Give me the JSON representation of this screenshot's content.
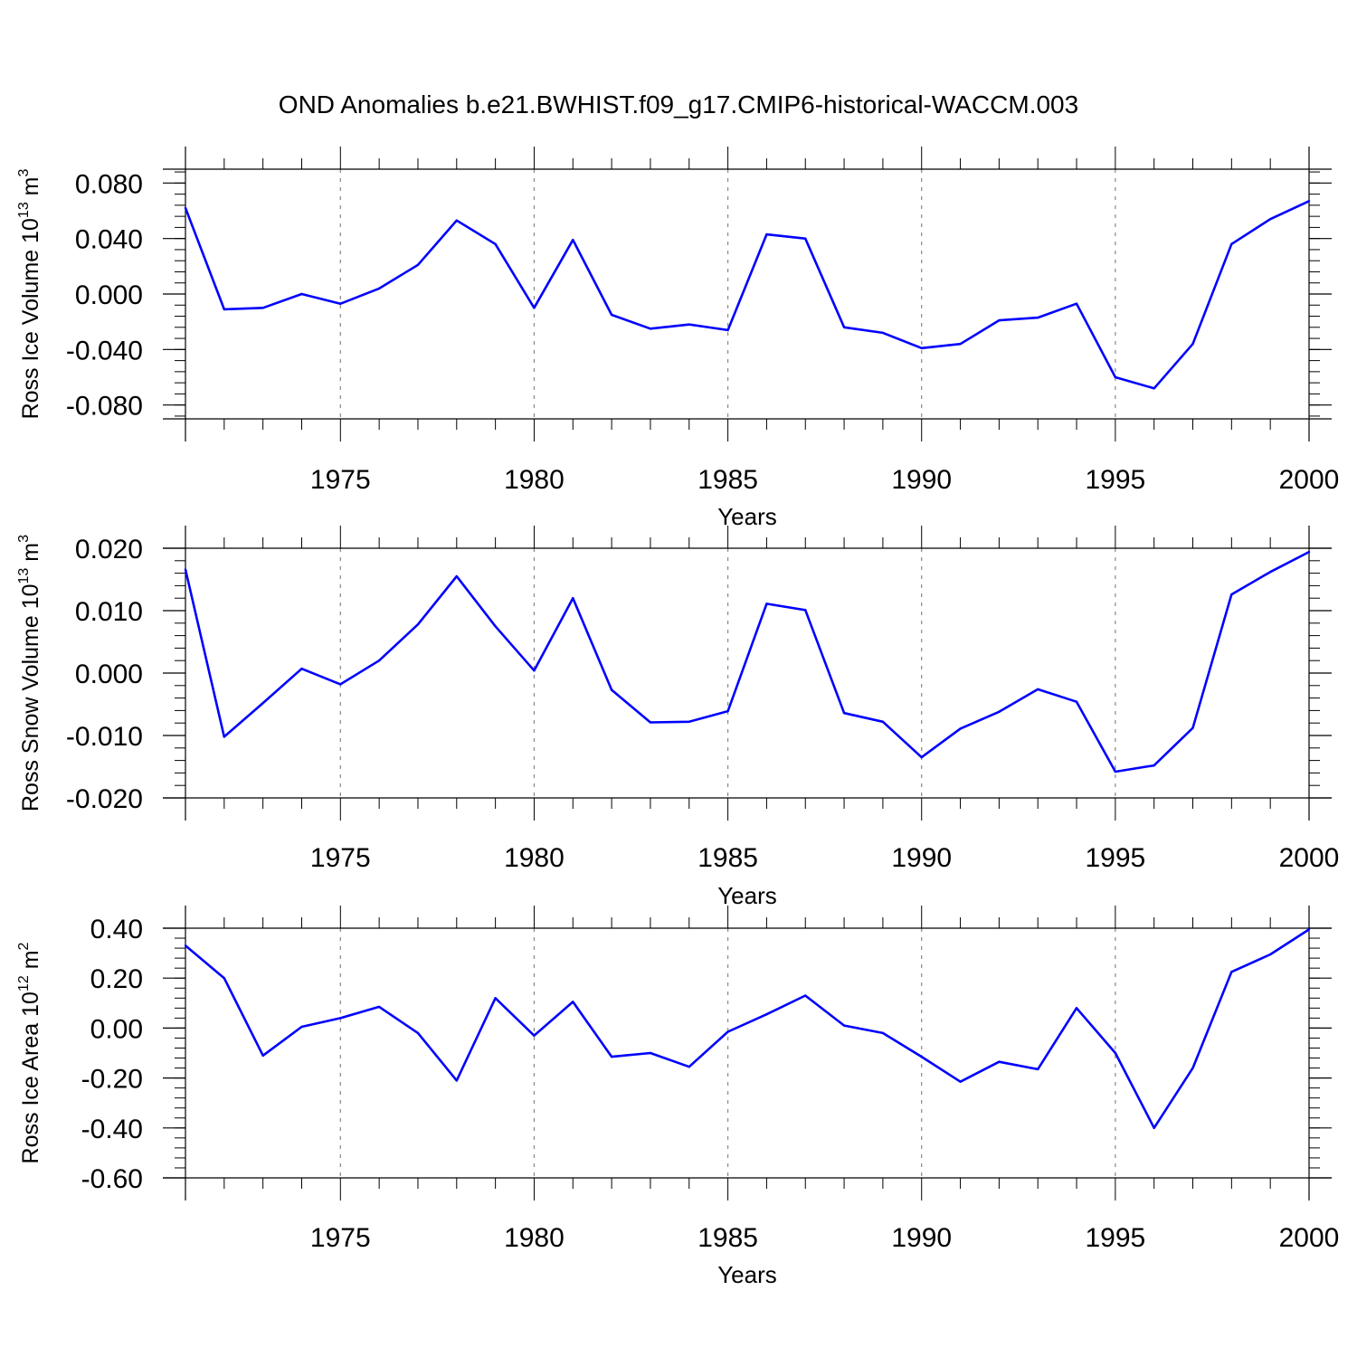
{
  "title": "OND Anomalies b.e21.BWHIST.f09_g17.CMIP6-historical-WACCM.003",
  "colors": {
    "line": "#0000ff",
    "axis": "#000000",
    "grid": "#888888"
  },
  "chart_data": [
    {
      "type": "line",
      "ylabel": {
        "main": "Ross Ice Volume 10",
        "exp": "13",
        "unit": " m",
        "unit_exp": "3"
      },
      "xlabel": "Years",
      "xlim": [
        1971,
        2000
      ],
      "ylim": [
        -0.09,
        0.09
      ],
      "xticks": [
        1975,
        1980,
        1985,
        1990,
        1995,
        2000
      ],
      "xtick_labels": [
        "1975",
        "1980",
        "1985",
        "1990",
        "1995",
        "2000"
      ],
      "yticks": [
        0.08,
        0.04,
        0.0,
        -0.04,
        -0.08
      ],
      "ytick_labels": [
        "0.080",
        "0.040",
        "0.000",
        "-0.040",
        "-0.080"
      ],
      "grid_x": true,
      "x": [
        1971,
        1972,
        1973,
        1974,
        1975,
        1976,
        1977,
        1978,
        1979,
        1980,
        1981,
        1982,
        1983,
        1984,
        1985,
        1986,
        1987,
        1988,
        1989,
        1990,
        1991,
        1992,
        1993,
        1994,
        1995,
        1996,
        1997,
        1998,
        1999,
        2000
      ],
      "series": [
        {
          "values": [
            0.062,
            -0.011,
            -0.01,
            0.0,
            -0.007,
            0.004,
            0.021,
            0.053,
            0.036,
            -0.01,
            0.039,
            -0.015,
            -0.025,
            -0.022,
            -0.026,
            0.043,
            0.04,
            -0.024,
            -0.028,
            -0.039,
            -0.036,
            -0.019,
            -0.017,
            -0.007,
            -0.06,
            -0.068,
            -0.036,
            0.036,
            0.054,
            0.067
          ]
        }
      ]
    },
    {
      "type": "line",
      "ylabel": {
        "main": "Ross Snow Volume 10",
        "exp": "13",
        "unit": " m",
        "unit_exp": "3"
      },
      "xlabel": "Years",
      "xlim": [
        1971,
        2000
      ],
      "ylim": [
        -0.02,
        0.02
      ],
      "xticks": [
        1975,
        1980,
        1985,
        1990,
        1995,
        2000
      ],
      "xtick_labels": [
        "1975",
        "1980",
        "1985",
        "1990",
        "1995",
        "2000"
      ],
      "yticks": [
        0.02,
        0.01,
        0.0,
        -0.01,
        -0.02
      ],
      "ytick_labels": [
        "0.020",
        "0.010",
        "0.000",
        "-0.010",
        "-0.020"
      ],
      "grid_x": true,
      "x": [
        1971,
        1972,
        1973,
        1974,
        1975,
        1976,
        1977,
        1978,
        1979,
        1980,
        1981,
        1982,
        1983,
        1984,
        1985,
        1986,
        1987,
        1988,
        1989,
        1990,
        1991,
        1992,
        1993,
        1994,
        1995,
        1996,
        1997,
        1998,
        1999,
        2000
      ],
      "series": [
        {
          "values": [
            0.0166,
            -0.0102,
            -0.0048,
            0.0007,
            -0.0018,
            0.002,
            0.0078,
            0.0155,
            0.0075,
            0.0004,
            0.012,
            -0.0027,
            -0.0079,
            -0.0078,
            -0.0061,
            0.0111,
            0.0101,
            -0.0064,
            -0.0078,
            -0.0135,
            -0.0089,
            -0.0062,
            -0.0026,
            -0.0046,
            -0.0158,
            -0.0148,
            -0.0088,
            0.0126,
            0.0162,
            0.0194
          ]
        }
      ]
    },
    {
      "type": "line",
      "ylabel": {
        "main": "Ross Ice Area 10",
        "exp": "12",
        "unit": " m",
        "unit_exp": "2"
      },
      "xlabel": "Years",
      "xlim": [
        1971,
        2000
      ],
      "ylim": [
        -0.6,
        0.4
      ],
      "xticks": [
        1975,
        1980,
        1985,
        1990,
        1995,
        2000
      ],
      "xtick_labels": [
        "1975",
        "1980",
        "1985",
        "1990",
        "1995",
        "2000"
      ],
      "yticks": [
        0.4,
        0.2,
        0.0,
        -0.2,
        -0.4,
        -0.6
      ],
      "ytick_labels": [
        "0.40",
        "0.20",
        "0.00",
        "-0.20",
        "-0.40",
        "-0.60"
      ],
      "grid_x": true,
      "x": [
        1971,
        1972,
        1973,
        1974,
        1975,
        1976,
        1977,
        1978,
        1979,
        1980,
        1981,
        1982,
        1983,
        1984,
        1985,
        1986,
        1987,
        1988,
        1989,
        1990,
        1991,
        1992,
        1993,
        1994,
        1995,
        1996,
        1997,
        1998,
        1999,
        2000
      ],
      "series": [
        {
          "values": [
            0.33,
            0.2,
            -0.11,
            0.005,
            0.04,
            0.085,
            -0.02,
            -0.21,
            0.12,
            -0.03,
            0.105,
            -0.115,
            -0.1,
            -0.155,
            -0.015,
            0.055,
            0.13,
            0.01,
            -0.02,
            -0.115,
            -0.215,
            -0.135,
            -0.165,
            0.08,
            -0.1,
            -0.4,
            -0.16,
            0.225,
            0.295,
            0.395
          ]
        }
      ]
    }
  ]
}
